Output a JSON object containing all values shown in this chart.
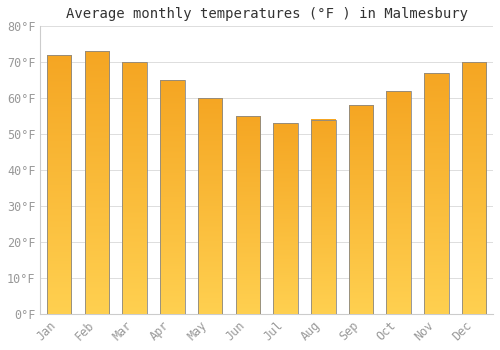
{
  "title": "Average monthly temperatures (°F ) in Malmesbury",
  "months": [
    "Jan",
    "Feb",
    "Mar",
    "Apr",
    "May",
    "Jun",
    "Jul",
    "Aug",
    "Sep",
    "Oct",
    "Nov",
    "Dec"
  ],
  "values": [
    72,
    73,
    70,
    65,
    60,
    55,
    53,
    54,
    58,
    62,
    67,
    70
  ],
  "bar_color_dark": "#F5A623",
  "bar_color_light": "#FFD050",
  "ylim": [
    0,
    80
  ],
  "yticks": [
    0,
    10,
    20,
    30,
    40,
    50,
    60,
    70,
    80
  ],
  "ytick_labels": [
    "0°F",
    "10°F",
    "20°F",
    "30°F",
    "40°F",
    "50°F",
    "60°F",
    "70°F",
    "80°F"
  ],
  "background_color": "#FFFFFF",
  "grid_color": "#DDDDDD",
  "title_fontsize": 10,
  "tick_fontsize": 8.5,
  "tick_color": "#999999",
  "bar_edge_color": "#888888",
  "bar_width": 0.65
}
